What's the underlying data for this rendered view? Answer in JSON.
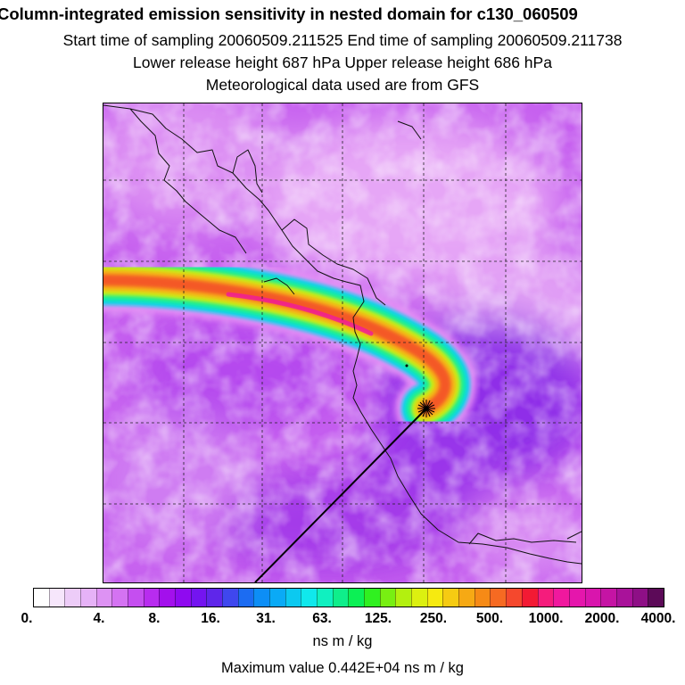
{
  "header": {
    "title": "Column-integrated emission sensitivity in nested domain for c130_060509",
    "line2": "Start time of sampling 20060509.211525      End time of sampling 20060509.211738",
    "line3": "Lower release height  687 hPa          Upper release height  686 hPa",
    "line4": "Meteorological data used are from GFS"
  },
  "map": {
    "grid_style": "dashed",
    "release_point_marker": "star-burst"
  },
  "colorbar": {
    "colors": [
      "#ffffff",
      "#f6e6fb",
      "#edccf8",
      "#e6b2f7",
      "#dd92f3",
      "#d473f2",
      "#c54ef0",
      "#b82cef",
      "#a310ec",
      "#8f0af0",
      "#7414f0",
      "#5f26ea",
      "#3f47ee",
      "#1c6cf2",
      "#0d8ef6",
      "#0aaaf6",
      "#0cc9f0",
      "#10e8ec",
      "#10f0c0",
      "#0fee8b",
      "#0cf055",
      "#30f020",
      "#78ef12",
      "#b3f00f",
      "#dcf010",
      "#f6ea10",
      "#f6cb12",
      "#f6a914",
      "#f68a16",
      "#f66a22",
      "#f5482d",
      "#f31a34",
      "#f51c7c",
      "#f0189e",
      "#e516ac",
      "#d915ad",
      "#c514a4",
      "#a9129a",
      "#8e0f86",
      "#5c0a58"
    ],
    "tick_labels": [
      "0.",
      "4.",
      "8.",
      "16.",
      "31.",
      "63.",
      "125.",
      "250.",
      "500.",
      "1000.",
      "2000.",
      "4000."
    ],
    "unit": "ns m / kg"
  },
  "footer": {
    "max_value": "Maximum value  0.442E+04 ns m / kg"
  }
}
